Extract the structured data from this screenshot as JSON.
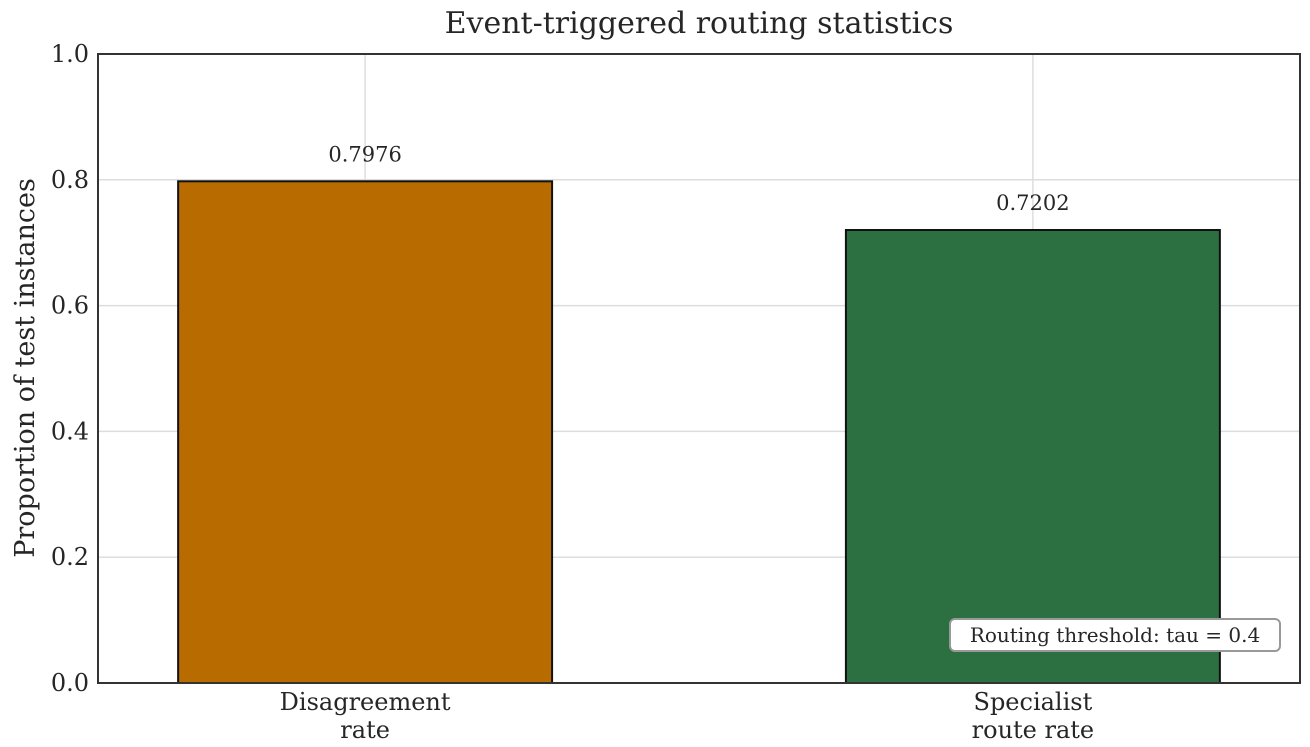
{
  "chart_data": {
    "type": "bar",
    "title": "Event-triggered routing statistics",
    "xlabel": "",
    "ylabel": "Proportion of test instances",
    "ylim": [
      0,
      1.0
    ],
    "yticks": [
      "0.0",
      "0.2",
      "0.4",
      "0.6",
      "0.8",
      "1.0"
    ],
    "categories": [
      [
        "Disagreement",
        "rate"
      ],
      [
        "Specialist",
        "route rate"
      ]
    ],
    "values": [
      0.7976,
      0.7202
    ],
    "value_labels": [
      "0.7976",
      "0.7202"
    ],
    "colors": [
      "#b86c00",
      "#2c7042"
    ],
    "grid": true,
    "annotation": "Routing threshold: tau = 0.4"
  }
}
